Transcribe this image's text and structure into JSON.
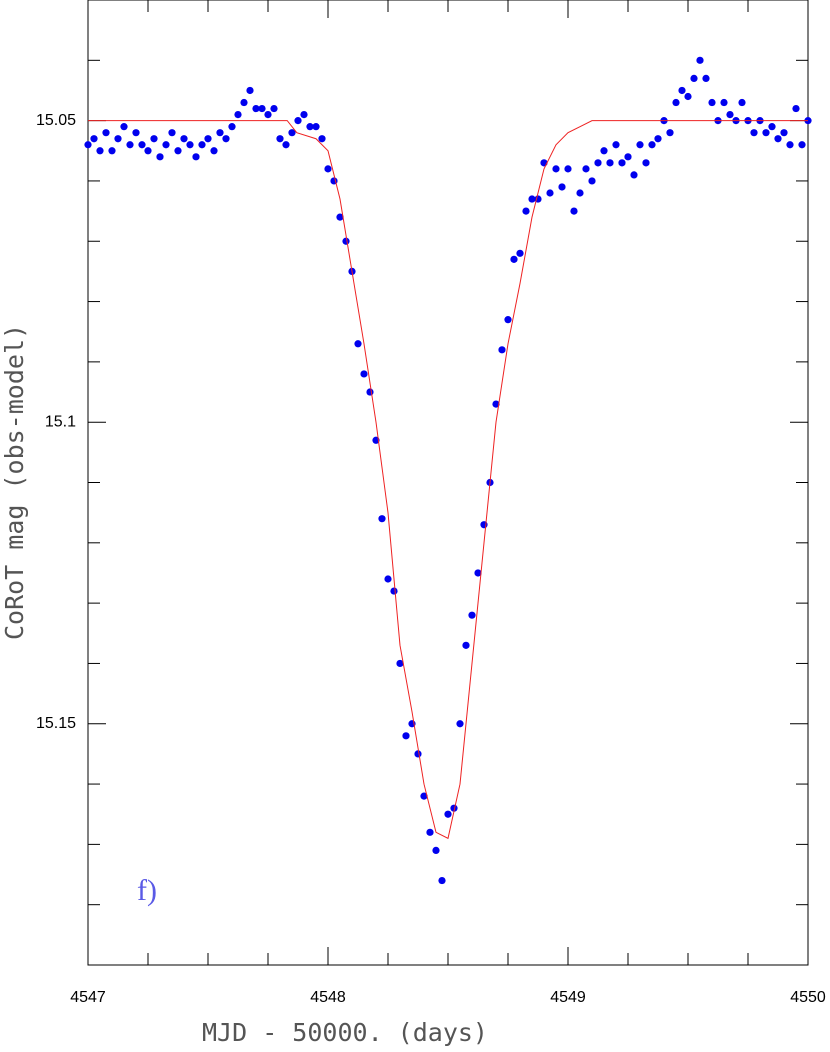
{
  "chart_data": {
    "type": "scatter",
    "xlabel": "MJD - 50000. (days)",
    "ylabel": "CoRoT mag (obs-model)",
    "annotation": "f)",
    "xlim": [
      4547,
      4550
    ],
    "ylim": [
      15.03,
      15.19
    ],
    "y_inverted": true,
    "xticks": [
      4547,
      4548,
      4549,
      4550
    ],
    "xminorticks": [
      4547.25,
      4547.5,
      4547.75,
      4548.25,
      4548.5,
      4548.75,
      4549.25,
      4549.5,
      4549.75
    ],
    "yticks": [
      15.05,
      15.1,
      15.15
    ],
    "yminorticks": [
      15.04,
      15.06,
      15.07,
      15.08,
      15.09,
      15.11,
      15.12,
      15.13,
      15.14,
      15.16,
      15.17,
      15.18
    ],
    "series": [
      {
        "name": "observations",
        "color": "#0000ee",
        "marker": "dot",
        "x": [
          4547.0,
          4547.025,
          4547.05,
          4547.075,
          4547.1,
          4547.125,
          4547.15,
          4547.175,
          4547.2,
          4547.225,
          4547.25,
          4547.275,
          4547.3,
          4547.325,
          4547.35,
          4547.375,
          4547.4,
          4547.425,
          4547.45,
          4547.475,
          4547.5,
          4547.525,
          4547.55,
          4547.575,
          4547.6,
          4547.625,
          4547.65,
          4547.675,
          4547.7,
          4547.725,
          4547.75,
          4547.775,
          4547.8,
          4547.825,
          4547.85,
          4547.875,
          4547.9,
          4547.925,
          4547.95,
          4547.975,
          4548.0,
          4548.025,
          4548.05,
          4548.075,
          4548.1,
          4548.125,
          4548.15,
          4548.175,
          4548.2,
          4548.225,
          4548.25,
          4548.275,
          4548.3,
          4548.325,
          4548.35,
          4548.375,
          4548.4,
          4548.425,
          4548.45,
          4548.475,
          4548.5,
          4548.525,
          4548.55,
          4548.575,
          4548.6,
          4548.625,
          4548.65,
          4548.675,
          4548.7,
          4548.725,
          4548.75,
          4548.775,
          4548.8,
          4548.825,
          4548.85,
          4548.875,
          4548.9,
          4548.925,
          4548.95,
          4548.975,
          4549.0,
          4549.025,
          4549.05,
          4549.075,
          4549.1,
          4549.125,
          4549.15,
          4549.175,
          4549.2,
          4549.225,
          4549.25,
          4549.275,
          4549.3,
          4549.325,
          4549.35,
          4549.375,
          4549.4,
          4549.425,
          4549.45,
          4549.475,
          4549.5,
          4549.525,
          4549.55,
          4549.575,
          4549.6,
          4549.625,
          4549.65,
          4549.675,
          4549.7,
          4549.725,
          4549.75,
          4549.775,
          4549.8,
          4549.825,
          4549.85,
          4549.875,
          4549.9,
          4549.925,
          4549.95,
          4549.975,
          4550.0
        ],
        "values": [
          15.054,
          15.053,
          15.055,
          15.052,
          15.055,
          15.053,
          15.051,
          15.054,
          15.052,
          15.054,
          15.055,
          15.053,
          15.056,
          15.054,
          15.052,
          15.055,
          15.053,
          15.054,
          15.056,
          15.054,
          15.053,
          15.055,
          15.052,
          15.053,
          15.051,
          15.049,
          15.047,
          15.045,
          15.048,
          15.048,
          15.049,
          15.048,
          15.053,
          15.054,
          15.052,
          15.05,
          15.049,
          15.051,
          15.051,
          15.053,
          15.058,
          15.06,
          15.066,
          15.07,
          15.075,
          15.087,
          15.092,
          15.095,
          15.103,
          15.116,
          15.126,
          15.128,
          15.14,
          15.152,
          15.15,
          15.155,
          15.162,
          15.168,
          15.171,
          15.176,
          15.165,
          15.164,
          15.15,
          15.137,
          15.132,
          15.125,
          15.117,
          15.11,
          15.097,
          15.088,
          15.083,
          15.073,
          15.072,
          15.065,
          15.063,
          15.063,
          15.057,
          15.062,
          15.058,
          15.061,
          15.058,
          15.065,
          15.062,
          15.058,
          15.06,
          15.057,
          15.055,
          15.057,
          15.054,
          15.057,
          15.056,
          15.059,
          15.054,
          15.057,
          15.054,
          15.053,
          15.05,
          15.052,
          15.047,
          15.045,
          15.046,
          15.043,
          15.04,
          15.043,
          15.047,
          15.05,
          15.047,
          15.049,
          15.05,
          15.047,
          15.05,
          15.052,
          15.05,
          15.052,
          15.051,
          15.053,
          15.052,
          15.054,
          15.048,
          15.054,
          15.05
        ]
      },
      {
        "name": "model",
        "color": "#ee2222",
        "marker": "line",
        "x": [
          4547.0,
          4547.83,
          4547.87,
          4547.95,
          4548.0,
          4548.05,
          4548.1,
          4548.15,
          4548.2,
          4548.25,
          4548.3,
          4548.35,
          4548.4,
          4548.45,
          4548.5,
          4548.55,
          4548.6,
          4548.65,
          4548.7,
          4548.75,
          4548.8,
          4548.85,
          4548.9,
          4548.95,
          4549.0,
          4549.05,
          4549.1,
          4550.0
        ],
        "values": [
          15.05,
          15.05,
          15.052,
          15.053,
          15.055,
          15.063,
          15.075,
          15.087,
          15.1,
          15.115,
          15.137,
          15.148,
          15.16,
          15.168,
          15.169,
          15.16,
          15.14,
          15.12,
          15.1,
          15.087,
          15.077,
          15.066,
          15.058,
          15.054,
          15.052,
          15.051,
          15.05,
          15.05
        ]
      }
    ]
  }
}
